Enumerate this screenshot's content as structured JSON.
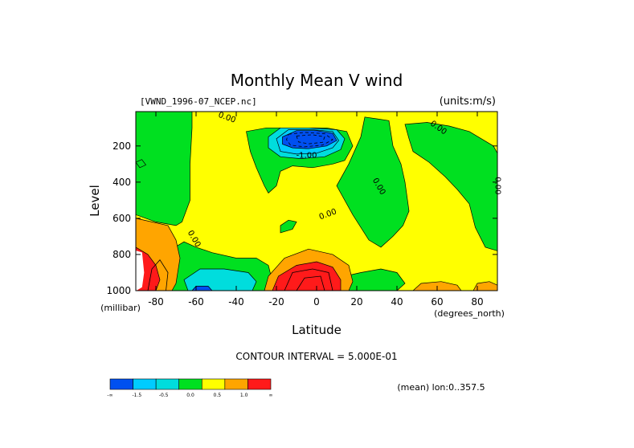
{
  "chart_data": {
    "type": "contour",
    "title": "Monthly Mean V wind",
    "dataset_label": "[VWND_1996-07_NCEP.nc]",
    "units_label": "(units:m/s)",
    "xlabel": "Latitude",
    "ylabel": "Level",
    "x_units": "(degrees_north)",
    "y_units": "(millibar)",
    "xlim": [
      -90,
      90
    ],
    "ylim": [
      1000,
      10
    ],
    "y_inverted": true,
    "x_ticks": [
      -80,
      -60,
      -40,
      -20,
      0,
      20,
      40,
      60,
      80
    ],
    "x_tick_labels": [
      "-80",
      "-60",
      "-40",
      "-20",
      "0",
      "20",
      "40",
      "60",
      "80"
    ],
    "y_ticks": [
      200,
      400,
      600,
      800,
      1000
    ],
    "y_tick_labels": [
      "200",
      "400",
      "600",
      "800",
      "1000"
    ],
    "contour_interval_label": "CONTOUR INTERVAL = 5.000E-01",
    "mean_label": "(mean) lon:0..357.5",
    "contour_labels": [
      {
        "text": "0.00",
        "lat": -45,
        "level": 55,
        "angle": 20
      },
      {
        "text": "-1.00",
        "lat": -5,
        "level": 265,
        "angle": 0
      },
      {
        "text": "0.00",
        "lat": 6,
        "level": 590,
        "angle": -20
      },
      {
        "text": "0.00",
        "lat": -62,
        "level": 720,
        "angle": 60
      },
      {
        "text": "0.00",
        "lat": 30,
        "level": 430,
        "angle": 60
      },
      {
        "text": "0.00",
        "lat": 60,
        "level": 110,
        "angle": 35
      },
      {
        "text": "0.00",
        "lat": 89,
        "level": 420,
        "angle": 90
      }
    ],
    "colorbar": {
      "colors": [
        "#0050f0",
        "#00ccff",
        "#00dddd",
        "#00e020",
        "#ffff00",
        "#ffa500",
        "#ff1a1a"
      ],
      "labels": [
        "-∞",
        "-1.5",
        "-0.5",
        "0.0",
        "0.5",
        "1.0",
        "∞"
      ]
    },
    "fill_colors": {
      "zero_to_pos_half": "#ffff00",
      "neg_half_to_zero": "#00e020",
      "neg_one_to_neg_half": "#00dddd",
      "neg_onehalf_to_neg_one": "#00ccff",
      "below_neg_onehalf": "#0050f0",
      "pos_half_to_one": "#ffa500",
      "above_one": "#ff1a1a"
    }
  }
}
